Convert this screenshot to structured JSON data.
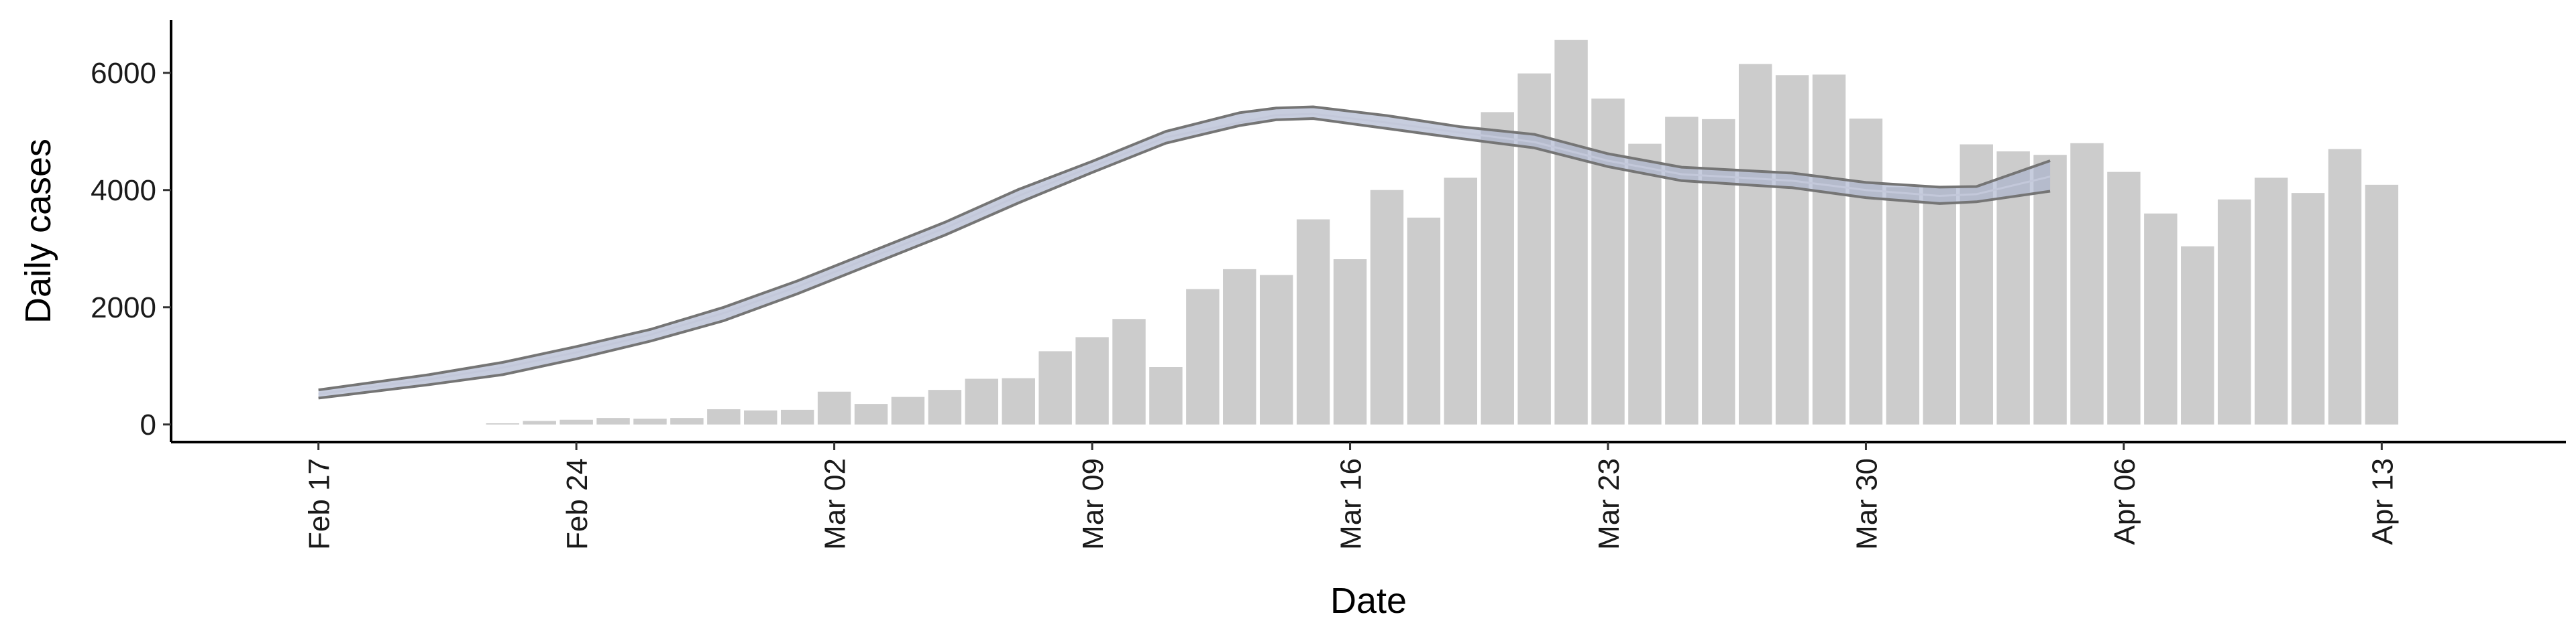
{
  "chart_data": {
    "type": "bar",
    "title": "",
    "xlabel": "Date",
    "ylabel": "Daily cases",
    "x_start": "2020-02-17",
    "xlim": [
      "2020-02-13",
      "2020-04-18"
    ],
    "ylim": [
      -300,
      6900
    ],
    "x_ticks": [
      "2020-02-17",
      "2020-02-24",
      "2020-03-02",
      "2020-03-09",
      "2020-03-16",
      "2020-03-23",
      "2020-03-30",
      "2020-04-06",
      "2020-04-13"
    ],
    "x_tick_labels": [
      "Feb 17",
      "Feb 24",
      "Mar 02",
      "Mar 09",
      "Mar 16",
      "Mar 23",
      "Mar 30",
      "Apr 06",
      "Apr 13"
    ],
    "y_ticks": [
      0,
      2000,
      4000,
      6000
    ],
    "y_tick_labels": [
      "0",
      "2000",
      "4000",
      "6000"
    ],
    "grid": false,
    "bars": {
      "x": [
        "2020-02-22",
        "2020-02-23",
        "2020-02-24",
        "2020-02-25",
        "2020-02-26",
        "2020-02-27",
        "2020-02-28",
        "2020-02-29",
        "2020-03-01",
        "2020-03-02",
        "2020-03-03",
        "2020-03-04",
        "2020-03-05",
        "2020-03-06",
        "2020-03-07",
        "2020-03-08",
        "2020-03-09",
        "2020-03-10",
        "2020-03-11",
        "2020-03-12",
        "2020-03-13",
        "2020-03-14",
        "2020-03-15",
        "2020-03-16",
        "2020-03-17",
        "2020-03-18",
        "2020-03-19",
        "2020-03-20",
        "2020-03-21",
        "2020-03-22",
        "2020-03-23",
        "2020-03-24",
        "2020-03-25",
        "2020-03-26",
        "2020-03-27",
        "2020-03-28",
        "2020-03-29",
        "2020-03-30",
        "2020-03-31",
        "2020-04-01",
        "2020-04-02",
        "2020-04-03",
        "2020-04-04",
        "2020-04-05",
        "2020-04-06",
        "2020-04-07",
        "2020-04-08",
        "2020-04-09",
        "2020-04-10",
        "2020-04-11",
        "2020-04-12",
        "2020-04-13"
      ],
      "values": [
        20,
        60,
        80,
        110,
        100,
        110,
        260,
        240,
        250,
        560,
        350,
        470,
        590,
        780,
        790,
        1250,
        1490,
        1800,
        980,
        2310,
        2650,
        2550,
        3500,
        2820,
        4000,
        3530,
        4210,
        5330,
        5990,
        6560,
        5560,
        4790,
        5250,
        5210,
        6150,
        5960,
        5970,
        5220,
        4050,
        4050,
        4780,
        4660,
        4600,
        4800,
        4310,
        3600,
        3040,
        3840,
        4210,
        3950,
        4700,
        4090
      ]
    },
    "series": [
      {
        "type": "line",
        "x": [
          "2020-02-17",
          "2020-02-20",
          "2020-02-22",
          "2020-02-24",
          "2020-02-26",
          "2020-02-28",
          "2020-03-01",
          "2020-03-03",
          "2020-03-05",
          "2020-03-07",
          "2020-03-09",
          "2020-03-11",
          "2020-03-13",
          "2020-03-14",
          "2020-03-15",
          "2020-03-17",
          "2020-03-19",
          "2020-03-21",
          "2020-03-23",
          "2020-03-25",
          "2020-03-28",
          "2020-03-30",
          "2020-04-01",
          "2020-04-02",
          "2020-04-04"
        ],
        "values": [
          520,
          770,
          970,
          1230,
          1530,
          1900,
          2350,
          2850,
          3350,
          3900,
          4400,
          4900,
          5150,
          5280,
          5300,
          5150,
          4980,
          4820,
          4500,
          4270,
          4160,
          4000,
          3900,
          3930,
          4230
        ],
        "lower": [
          450,
          680,
          850,
          1120,
          1420,
          1770,
          2230,
          2730,
          3230,
          3780,
          4300,
          4800,
          5100,
          5200,
          5220,
          5050,
          4880,
          4720,
          4400,
          4160,
          4040,
          3870,
          3770,
          3800,
          3980
        ],
        "upper": [
          590,
          850,
          1060,
          1330,
          1620,
          2000,
          2450,
          2950,
          3450,
          4010,
          4490,
          5000,
          5320,
          5400,
          5420,
          5270,
          5080,
          4950,
          4620,
          4390,
          4290,
          4130,
          4050,
          4060,
          4500
        ]
      }
    ],
    "colors": {
      "bars": "#cccccc",
      "line": "#757575",
      "ribbon": "#a9b2cc"
    }
  }
}
